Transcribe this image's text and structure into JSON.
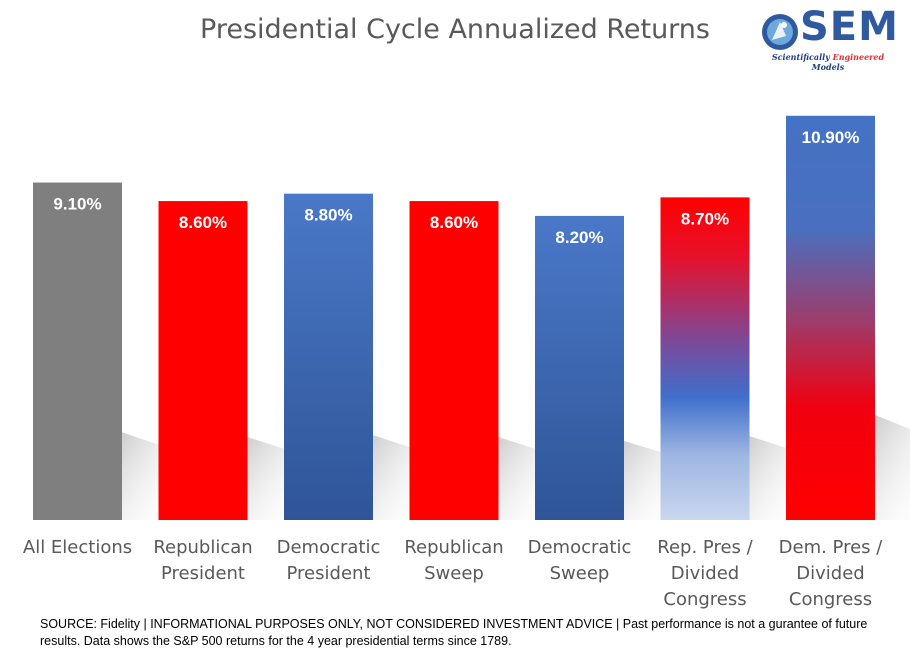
{
  "chart_data": {
    "type": "bar",
    "title": "Presidential Cycle Annualized Returns",
    "xlabel": "",
    "ylabel": "",
    "ylim": [
      0,
      12
    ],
    "grid": false,
    "categories": [
      [
        "All Elections"
      ],
      [
        "Republican",
        "President"
      ],
      [
        "Democratic",
        "President"
      ],
      [
        "Republican",
        "Sweep"
      ],
      [
        "Democratic",
        "Sweep"
      ],
      [
        "Rep. Pres /",
        "Divided",
        "Congress"
      ],
      [
        "Dem. Pres /",
        "Divided",
        "Congress"
      ]
    ],
    "values": [
      9.1,
      8.6,
      8.8,
      8.6,
      8.2,
      8.7,
      10.9
    ],
    "data_labels": [
      "9.10%",
      "8.60%",
      "8.80%",
      "8.60%",
      "8.20%",
      "8.70%",
      "10.90%"
    ],
    "bar_styles": [
      "gray",
      "red",
      "blue",
      "red",
      "blue",
      "red-to-lightblue",
      "blue-to-red"
    ],
    "colors": {
      "gray": "#7f7f7f",
      "red": "#ff0000",
      "blue_top": "#4472c4",
      "blue_bottom": "#2f5597",
      "light_blue": "#c5d4ee",
      "axis_text": "#595959",
      "title_text": "#595959"
    }
  },
  "logo": {
    "text": "SEM",
    "tagline_part1": "Scientifically ",
    "tagline_accent": "Engineered",
    "tagline_part2": " Models"
  },
  "source_note": "SOURCE: Fidelity | INFORMATIONAL PURPOSES ONLY, NOT CONSIDERED INVESTMENT ADVICE | Past performance is not a gurantee of future results. Data shows the S&P 500 returns for the 4 year presidential terms since 1789."
}
